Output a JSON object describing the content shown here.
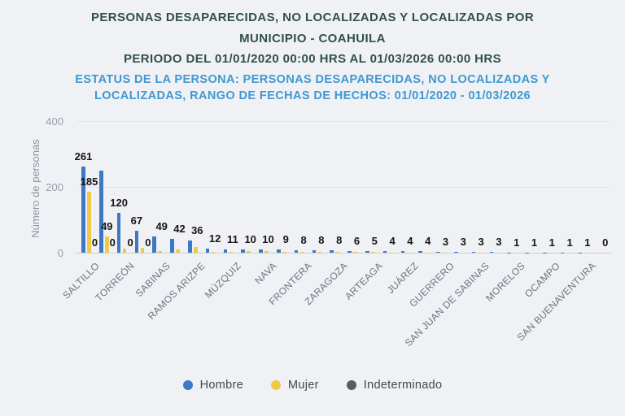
{
  "title": {
    "line1": "PERSONAS DESAPARECIDAS, NO LOCALIZADAS Y LOCALIZADAS POR",
    "line2": "MUNICIPIO - COAHUILA",
    "line3": "PERIODO DEL 01/01/2020 00:00 HRS AL 01/03/2026 00:00 HRS",
    "line4": "ESTATUS DE LA PERSONA: PERSONAS DESAPARECIDAS, NO LOCALIZADAS Y",
    "line5": "LOCALIZADAS, RANGO DE FECHAS DE HECHOS: 01/01/2020 - 01/03/2026"
  },
  "y_axis": {
    "title": "Número de personas",
    "ticks": [
      "0",
      "200",
      "400"
    ]
  },
  "legend": [
    {
      "label": "Hombre",
      "color": "#3C79C4"
    },
    {
      "label": "Mujer",
      "color": "#F0C94A"
    },
    {
      "label": "Indeterminado",
      "color": "#555E64"
    }
  ],
  "colors": {
    "background": "#F0F1F5",
    "title_dark": "#2F5049",
    "title_blue": "#3E98D2",
    "bar_hombre": "#3C79C4",
    "bar_mujer": "#F0C94A",
    "bar_indeterminado": "#555E64",
    "data_label": "#151515"
  },
  "chart_data": {
    "type": "bar",
    "title": "PERSONAS DESAPARECIDAS, NO LOCALIZADAS Y LOCALIZADAS POR MUNICIPIO - COAHUILA",
    "subtitle": "PERIODO DEL 01/01/2020 00:00 HRS AL 01/03/2026 00:00 HRS",
    "xlabel": "",
    "ylabel": "Número de personas",
    "ylim": [
      0,
      400
    ],
    "yticks": [
      0,
      200,
      400
    ],
    "grid": true,
    "legend_position": "bottom",
    "series_names": [
      "Hombre",
      "Mujer",
      "Indeterminado"
    ],
    "note_axis": "only every other category shows an axis name; unlabeled categories have name \"\"",
    "groups": [
      {
        "name": "SALTILLO",
        "hombre": 261,
        "mujer": 185,
        "indeterminado": 0,
        "labels": {
          "hombre": "261",
          "mujer": "185",
          "indeterminado": "0"
        }
      },
      {
        "name": "",
        "hombre": 250,
        "mujer": 49,
        "indeterminado": 0,
        "labels": {
          "hombre": "",
          "mujer": "49",
          "indeterminado": "0"
        }
      },
      {
        "name": "TORREÓN",
        "hombre": 120,
        "mujer": 12,
        "indeterminado": 0,
        "labels": {
          "hombre": "120",
          "mujer": "",
          "indeterminado": "0"
        }
      },
      {
        "name": "",
        "hombre": 67,
        "mujer": 15,
        "indeterminado": 0,
        "labels": {
          "hombre": "67",
          "mujer": "",
          "indeterminado": "0"
        }
      },
      {
        "name": "SABINAS",
        "hombre": 49,
        "mujer": 5,
        "indeterminado": 0,
        "labels": {
          "hombre": "49",
          "mujer": "",
          "indeterminado": ""
        }
      },
      {
        "name": "",
        "hombre": 42,
        "mujer": 10,
        "indeterminado": 0,
        "labels": {
          "hombre": "42",
          "mujer": "",
          "indeterminado": ""
        }
      },
      {
        "name": "RAMOS ARIZPE",
        "hombre": 36,
        "mujer": 18,
        "indeterminado": 0,
        "labels": {
          "hombre": "36",
          "mujer": "",
          "indeterminado": ""
        }
      },
      {
        "name": "",
        "hombre": 12,
        "mujer": 3,
        "indeterminado": 0,
        "labels": {
          "hombre": "12",
          "mujer": "",
          "indeterminado": ""
        }
      },
      {
        "name": "MÚZQUIZ",
        "hombre": 11,
        "mujer": 2,
        "indeterminado": 0,
        "labels": {
          "hombre": "11",
          "mujer": "",
          "indeterminado": ""
        }
      },
      {
        "name": "",
        "hombre": 10,
        "mujer": 4,
        "indeterminado": 0,
        "labels": {
          "hombre": "10",
          "mujer": "",
          "indeterminado": ""
        }
      },
      {
        "name": "NAVA",
        "hombre": 10,
        "mujer": 6,
        "indeterminado": 0,
        "labels": {
          "hombre": "10",
          "mujer": "",
          "indeterminado": ""
        }
      },
      {
        "name": "",
        "hombre": 9,
        "mujer": 2,
        "indeterminado": 0,
        "labels": {
          "hombre": "9",
          "mujer": "",
          "indeterminado": ""
        }
      },
      {
        "name": "FRONTERA",
        "hombre": 8,
        "mujer": 2,
        "indeterminado": 0,
        "labels": {
          "hombre": "8",
          "mujer": "",
          "indeterminado": ""
        }
      },
      {
        "name": "",
        "hombre": 8,
        "mujer": 3,
        "indeterminado": 0,
        "labels": {
          "hombre": "8",
          "mujer": "",
          "indeterminado": ""
        }
      },
      {
        "name": "ZARAGOZA",
        "hombre": 8,
        "mujer": 2,
        "indeterminado": 0,
        "labels": {
          "hombre": "8",
          "mujer": "",
          "indeterminado": ""
        }
      },
      {
        "name": "",
        "hombre": 6,
        "mujer": 2,
        "indeterminado": 0,
        "labels": {
          "hombre": "6",
          "mujer": "",
          "indeterminado": ""
        }
      },
      {
        "name": "ARTEAGA",
        "hombre": 5,
        "mujer": 2,
        "indeterminado": 0,
        "labels": {
          "hombre": "5",
          "mujer": "",
          "indeterminado": ""
        }
      },
      {
        "name": "",
        "hombre": 4,
        "mujer": 1,
        "indeterminado": 0,
        "labels": {
          "hombre": "4",
          "mujer": "",
          "indeterminado": ""
        }
      },
      {
        "name": "JUÁREZ",
        "hombre": 4,
        "mujer": 1,
        "indeterminado": 0,
        "labels": {
          "hombre": "4",
          "mujer": "",
          "indeterminado": ""
        }
      },
      {
        "name": "",
        "hombre": 4,
        "mujer": 1,
        "indeterminado": 0,
        "labels": {
          "hombre": "4",
          "mujer": "",
          "indeterminado": ""
        }
      },
      {
        "name": "GUERRERO",
        "hombre": 3,
        "mujer": 1,
        "indeterminado": 0,
        "labels": {
          "hombre": "3",
          "mujer": "",
          "indeterminado": ""
        }
      },
      {
        "name": "",
        "hombre": 3,
        "mujer": 0,
        "indeterminado": 0,
        "labels": {
          "hombre": "3",
          "mujer": "",
          "indeterminado": ""
        }
      },
      {
        "name": "SAN JUAN DE SABINAS",
        "hombre": 3,
        "mujer": 1,
        "indeterminado": 0,
        "labels": {
          "hombre": "3",
          "mujer": "",
          "indeterminado": ""
        }
      },
      {
        "name": "",
        "hombre": 3,
        "mujer": 0,
        "indeterminado": 0,
        "labels": {
          "hombre": "3",
          "mujer": "",
          "indeterminado": ""
        }
      },
      {
        "name": "MORELOS",
        "hombre": 1,
        "mujer": 0,
        "indeterminado": 0,
        "labels": {
          "hombre": "1",
          "mujer": "",
          "indeterminado": ""
        }
      },
      {
        "name": "",
        "hombre": 1,
        "mujer": 0,
        "indeterminado": 0,
        "labels": {
          "hombre": "1",
          "mujer": "",
          "indeterminado": ""
        }
      },
      {
        "name": "OCAMPO",
        "hombre": 1,
        "mujer": 1,
        "indeterminado": 0,
        "labels": {
          "hombre": "1",
          "mujer": "",
          "indeterminado": ""
        }
      },
      {
        "name": "",
        "hombre": 1,
        "mujer": 0,
        "indeterminado": 0,
        "labels": {
          "hombre": "1",
          "mujer": "",
          "indeterminado": ""
        }
      },
      {
        "name": "SAN BUENAVENTURA",
        "hombre": 1,
        "mujer": 0,
        "indeterminado": 0,
        "labels": {
          "hombre": "1",
          "mujer": "",
          "indeterminado": ""
        }
      },
      {
        "name": "",
        "hombre": 0,
        "mujer": 0,
        "indeterminado": 0,
        "labels": {
          "hombre": "0",
          "mujer": "",
          "indeterminado": ""
        }
      }
    ]
  }
}
